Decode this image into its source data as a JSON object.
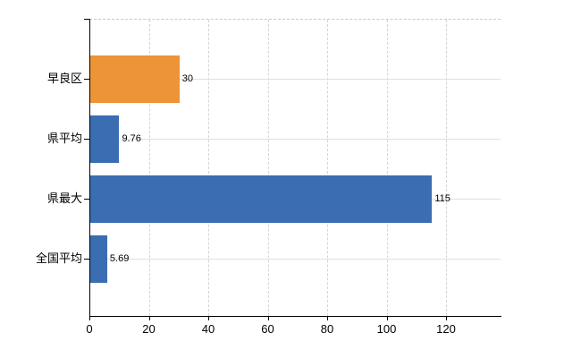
{
  "chart_data": {
    "type": "bar",
    "orientation": "horizontal",
    "title": "",
    "xlabel": "",
    "ylabel": "",
    "categories": [
      "早良区",
      "県平均",
      "県最大",
      "全国平均"
    ],
    "values": [
      30,
      9.76,
      115,
      5.69
    ],
    "value_labels": [
      "30",
      "9.76",
      "115",
      "5.69"
    ],
    "bar_colors": [
      "#ED9338",
      "#3A6DB2",
      "#3A6DB2",
      "#3A6DB2"
    ],
    "x_ticks": [
      0,
      20,
      40,
      60,
      80,
      100,
      120
    ],
    "xlim": [
      0,
      138
    ],
    "legend": "none",
    "grid": {
      "vertical_style": "dashed",
      "horizontal_style": "solid",
      "top_border_style": "dashed"
    },
    "colors": {
      "orange": "#ED9338",
      "blue": "#3A6DB2",
      "axis": "#000000",
      "grid_vertical": "#d6d3da",
      "grid_horizontal": "#dde2dc",
      "top_border": "#cbc8ce",
      "text": "#000000",
      "background": "#ffffff"
    }
  }
}
